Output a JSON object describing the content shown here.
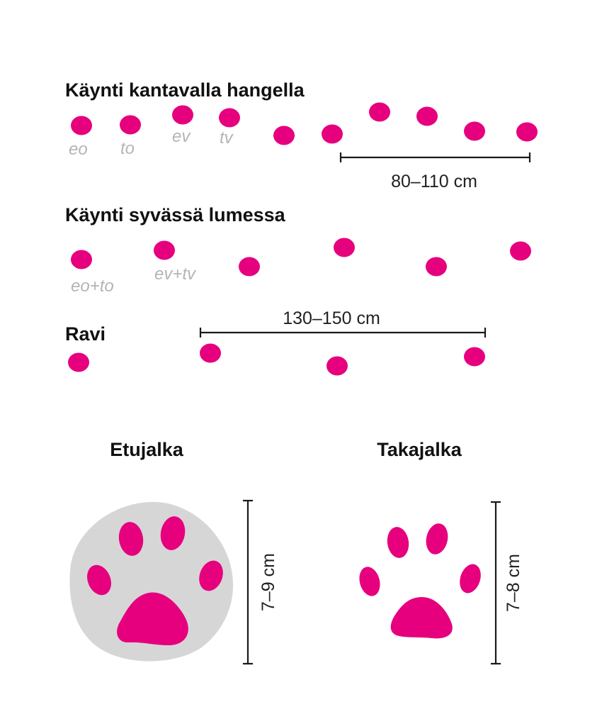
{
  "colors": {
    "print": "#e6007e",
    "text": "#111111",
    "label": "#b4b4b4",
    "halo": "#d6d6d7"
  },
  "gaits": {
    "walk_firm": {
      "title": "Käynti kantavalla hangella",
      "labels": [
        "eo",
        "to",
        "ev",
        "tv"
      ],
      "distance": "80–110 cm"
    },
    "walk_deep": {
      "title": "Käynti syvässä lumessa",
      "labels": [
        "eo+to",
        "ev+tv"
      ]
    },
    "trot": {
      "title": "Ravi",
      "distance": "130–150 cm"
    }
  },
  "paws": {
    "front": {
      "title": "Etujalka",
      "size": "7–9 cm"
    },
    "hind": {
      "title": "Takajalka",
      "size": "7–8 cm"
    }
  }
}
